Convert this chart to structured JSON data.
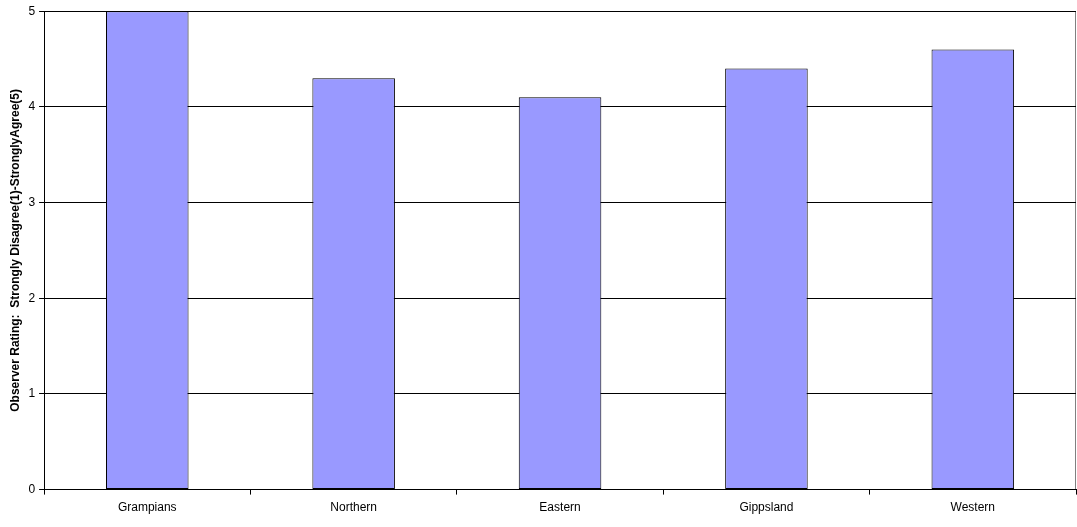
{
  "chart_data": {
    "type": "bar",
    "ylabel": "Observer Rating:  Strongly Disagree(1)-StronglyAgree(5)",
    "categories": [
      "Grampians",
      "Northern",
      "Eastern",
      "Gippsland",
      "Western"
    ],
    "values": [
      5,
      4.3,
      4.1,
      4.4,
      4.6
    ],
    "color": "#9999ff",
    "ylim": [
      0,
      5
    ],
    "yticks": [
      0,
      1,
      2,
      3,
      4,
      5
    ],
    "grid": "y"
  }
}
